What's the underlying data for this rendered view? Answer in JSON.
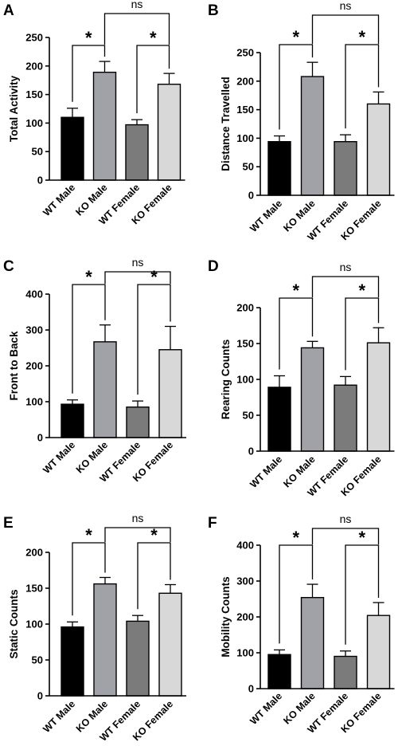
{
  "categories": [
    "WT Male",
    "KO Male",
    "WT Female",
    "KO Female"
  ],
  "colors": {
    "WT Male": "#000000",
    "KO Male": "#a1a1a8",
    "WT Female": "#7b7b7b",
    "KO Female": "#d8d8d8"
  },
  "significance": {
    "male_pair": "*",
    "female_pair": "*",
    "between_ko": "ns"
  },
  "chart_data": [
    {
      "panel": "A",
      "type": "bar",
      "ylabel": "Total Activity",
      "ylim": [
        0,
        250
      ],
      "yticks": [
        0,
        50,
        100,
        150,
        200,
        250
      ],
      "categories": [
        "WT Male",
        "KO Male",
        "WT Female",
        "KO Female"
      ],
      "values": [
        110,
        189,
        97,
        168
      ],
      "errors": [
        16,
        19,
        9,
        19
      ]
    },
    {
      "panel": "B",
      "type": "bar",
      "ylabel": "Distance Travelled",
      "ylim": [
        0,
        250
      ],
      "yticks": [
        0,
        50,
        100,
        150,
        200,
        250
      ],
      "categories": [
        "WT Male",
        "KO Male",
        "WT Female",
        "KO Female"
      ],
      "values": [
        94,
        208,
        94,
        160
      ],
      "errors": [
        10,
        25,
        12,
        21
      ]
    },
    {
      "panel": "C",
      "type": "bar",
      "ylabel": "Front to Back",
      "ylim": [
        0,
        400
      ],
      "yticks": [
        0,
        100,
        200,
        300,
        400
      ],
      "categories": [
        "WT Male",
        "KO Male",
        "WT Female",
        "KO Female"
      ],
      "values": [
        93,
        267,
        85,
        245
      ],
      "errors": [
        12,
        47,
        17,
        65
      ]
    },
    {
      "panel": "D",
      "type": "bar",
      "ylabel": "Rearing Counts",
      "ylim": [
        0,
        200
      ],
      "yticks": [
        0,
        50,
        100,
        150,
        200
      ],
      "categories": [
        "WT Male",
        "KO Male",
        "WT Female",
        "KO Female"
      ],
      "values": [
        89,
        144,
        92,
        151
      ],
      "errors": [
        16,
        9,
        12,
        21
      ]
    },
    {
      "panel": "E",
      "type": "bar",
      "ylabel": "Static Counts",
      "ylim": [
        0,
        200
      ],
      "yticks": [
        0,
        50,
        100,
        150,
        200
      ],
      "categories": [
        "WT Male",
        "KO Male",
        "WT Female",
        "KO Female"
      ],
      "values": [
        96,
        156,
        104,
        143
      ],
      "errors": [
        7,
        9,
        8,
        12
      ]
    },
    {
      "panel": "F",
      "type": "bar",
      "ylabel": "Mobility Counts",
      "ylim": [
        0,
        400
      ],
      "yticks": [
        0,
        100,
        200,
        300,
        400
      ],
      "categories": [
        "WT Male",
        "KO Male",
        "WT Female",
        "KO Female"
      ],
      "values": [
        95,
        254,
        90,
        204
      ],
      "errors": [
        13,
        37,
        15,
        36
      ]
    }
  ]
}
